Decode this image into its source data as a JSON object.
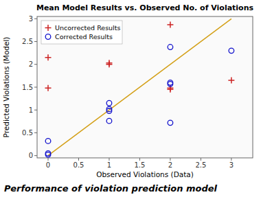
{
  "chart_data": {
    "type": "scatter",
    "title": "Mean Model Results vs. Observed No. of Violations",
    "xlabel": "Observed Violations (Data)",
    "ylabel": "Predicted Violations (Model)",
    "caption": "Performance of violation prediction model",
    "xlim": [
      -0.18,
      3.35
    ],
    "ylim": [
      -0.05,
      3.05
    ],
    "xticks": [
      0,
      0.5,
      1,
      1.5,
      2,
      2.5,
      3
    ],
    "yticks": [
      0,
      0.5,
      1,
      1.5,
      2,
      2.5,
      3
    ],
    "grid": false,
    "legend": "upper-left",
    "series": [
      {
        "type": "line",
        "color": "#D4A017",
        "x": [
          0,
          3
        ],
        "values": [
          0,
          3
        ]
      },
      {
        "name": "Uncorrected Results",
        "color": "#CC2222",
        "marker": "plus",
        "x": [
          0,
          0,
          1,
          1,
          2,
          2,
          2,
          3
        ],
        "values": [
          2.15,
          1.48,
          2.03,
          2.0,
          2.87,
          1.48,
          1.45,
          1.65
        ]
      },
      {
        "name": "Corrected Results",
        "color": "#1111CC",
        "marker": "circle",
        "x": [
          0,
          0,
          0,
          1,
          1,
          1,
          1,
          2,
          2,
          2,
          2,
          3
        ],
        "values": [
          0.32,
          0.05,
          0.02,
          1.15,
          1.02,
          0.98,
          0.76,
          2.38,
          1.6,
          1.57,
          0.72,
          2.3
        ]
      }
    ]
  }
}
